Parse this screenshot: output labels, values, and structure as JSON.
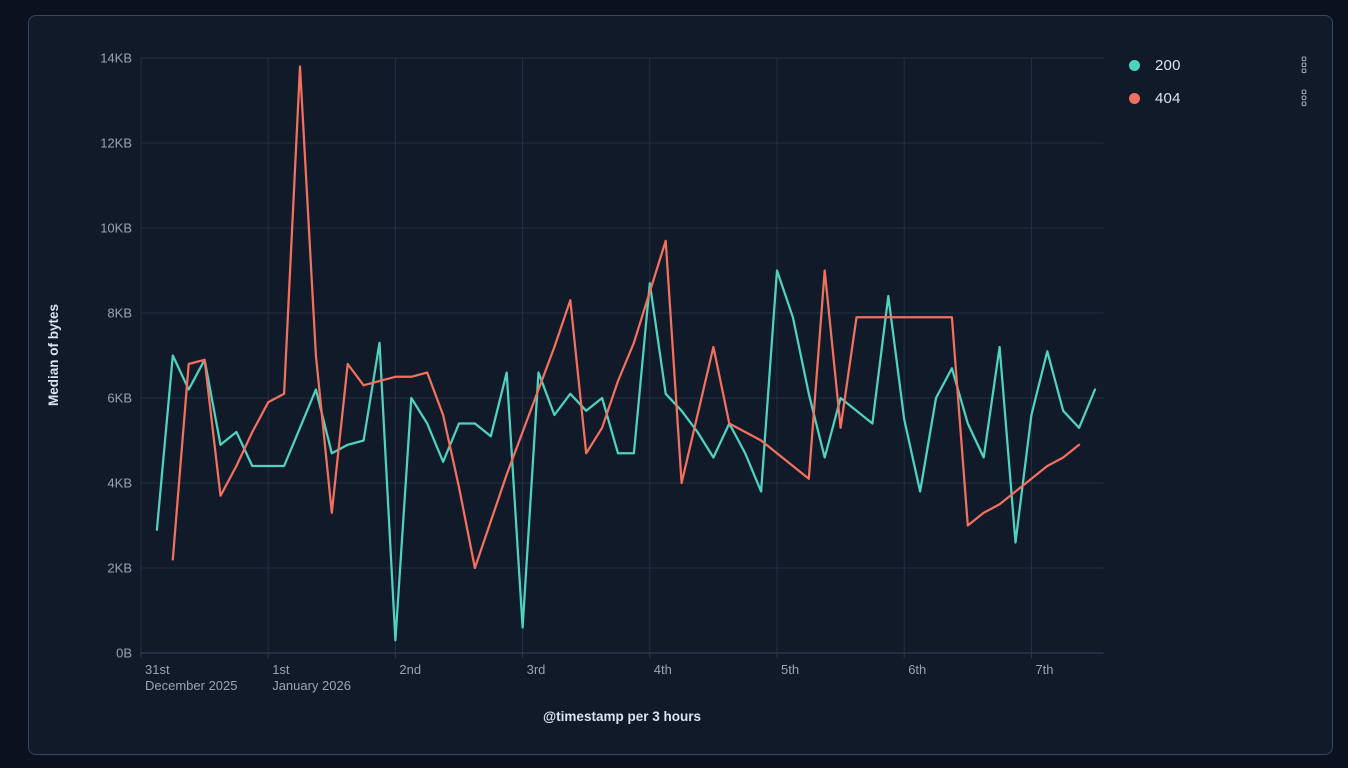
{
  "legend": {
    "items": [
      {
        "label": "200",
        "color": "#4fd2c1"
      },
      {
        "label": "404",
        "color": "#f1705e"
      }
    ]
  },
  "chart_data": {
    "type": "line",
    "title": "",
    "grid": true,
    "legend_position": "right",
    "x_axis": {
      "title": "@timestamp per 3 hours",
      "bucket_hours": 3,
      "buckets_per_day": 8,
      "tick_labels": [
        [
          "31st",
          "December 2025"
        ],
        [
          "1st",
          "January 2026"
        ],
        [
          "2nd"
        ],
        [
          "3rd"
        ],
        [
          "4th"
        ],
        [
          "5th"
        ],
        [
          "6th"
        ],
        [
          "7th"
        ]
      ]
    },
    "y_axis": {
      "title": "Median of bytes",
      "unit": "bytes",
      "min_kb": 0,
      "max_kb": 14,
      "tick_step_kb": 2,
      "tick_labels": [
        "0B",
        "2KB",
        "4KB",
        "6KB",
        "8KB",
        "10KB",
        "12KB",
        "14KB"
      ]
    },
    "series": [
      {
        "name": "200",
        "color": "#4fd2c1",
        "start_bucket": 1,
        "values_kb": [
          2.9,
          7.0,
          6.2,
          6.9,
          4.9,
          5.2,
          4.4,
          4.4,
          4.4,
          5.3,
          6.2,
          4.7,
          4.9,
          5.0,
          7.3,
          0.3,
          6.0,
          5.4,
          4.5,
          5.4,
          5.4,
          5.1,
          6.6,
          0.6,
          6.6,
          5.6,
          6.1,
          5.7,
          6.0,
          4.7,
          4.7,
          8.7,
          6.1,
          5.7,
          5.2,
          4.6,
          5.4,
          4.7,
          3.8,
          9.0,
          7.9,
          6.1,
          4.6,
          6.0,
          5.7,
          5.4,
          8.4,
          5.5,
          3.8,
          6.0,
          6.7,
          5.4,
          4.6,
          7.2,
          2.6,
          5.6,
          7.1,
          5.7,
          5.3,
          6.2
        ]
      },
      {
        "name": "404",
        "color": "#f1705e",
        "start_bucket": 2,
        "values_kb": [
          2.2,
          6.8,
          6.9,
          3.7,
          4.4,
          5.2,
          5.9,
          6.1,
          13.8,
          7.0,
          3.3,
          6.8,
          6.3,
          6.4,
          6.5,
          6.5,
          6.6,
          5.6,
          3.9,
          2.0,
          3.1,
          4.2,
          5.2,
          6.2,
          7.2,
          8.3,
          4.7,
          5.3,
          6.4,
          7.3,
          8.5,
          9.7,
          4.0,
          5.6,
          7.2,
          5.4,
          5.2,
          5.0,
          4.7,
          4.4,
          4.1,
          9.0,
          5.3,
          7.9,
          7.9,
          7.9,
          7.9,
          7.9,
          7.9,
          7.9,
          3.0,
          3.3,
          3.5,
          3.8,
          4.1,
          4.4,
          4.6,
          4.9
        ]
      }
    ]
  }
}
